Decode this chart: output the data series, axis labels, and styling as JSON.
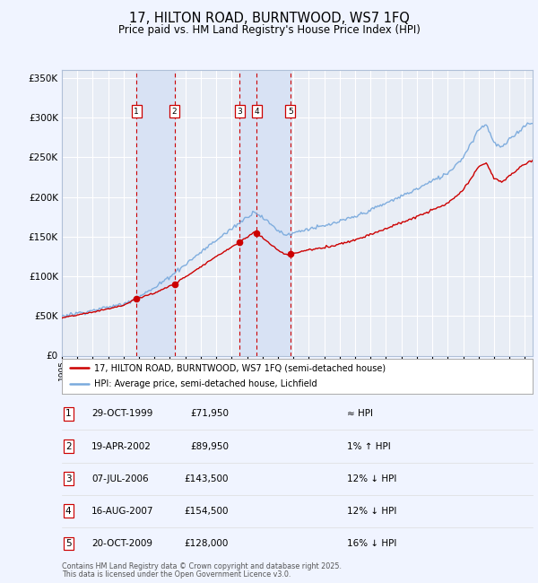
{
  "title": "17, HILTON ROAD, BURNTWOOD, WS7 1FQ",
  "subtitle": "Price paid vs. HM Land Registry's House Price Index (HPI)",
  "legend_label_red": "17, HILTON ROAD, BURNTWOOD, WS7 1FQ (semi-detached house)",
  "legend_label_blue": "HPI: Average price, semi-detached house, Lichfield",
  "footer1": "Contains HM Land Registry data © Crown copyright and database right 2025.",
  "footer2": "This data is licensed under the Open Government Licence v3.0.",
  "transactions": [
    {
      "num": 1,
      "date": "29-OCT-1999",
      "price": 71950,
      "year": 1999.83,
      "hpi_note": "≈ HPI"
    },
    {
      "num": 2,
      "date": "19-APR-2002",
      "price": 89950,
      "year": 2002.3,
      "hpi_note": "1% ↑ HPI"
    },
    {
      "num": 3,
      "date": "07-JUL-2006",
      "price": 143500,
      "year": 2006.52,
      "hpi_note": "12% ↓ HPI"
    },
    {
      "num": 4,
      "date": "16-AUG-2007",
      "price": 154500,
      "year": 2007.63,
      "hpi_note": "12% ↓ HPI"
    },
    {
      "num": 5,
      "date": "20-OCT-2009",
      "price": 128000,
      "year": 2009.8,
      "hpi_note": "16% ↓ HPI"
    }
  ],
  "background_color": "#f0f4ff",
  "plot_bg_color": "#e8edf5",
  "grid_color": "#ffffff",
  "red_color": "#cc0000",
  "blue_color": "#7aaadd",
  "dashed_color": "#cc0000",
  "highlight_bg": "#d8e2f4",
  "ylim": [
    0,
    360000
  ],
  "xlim_start": 1995.0,
  "xlim_end": 2025.5
}
